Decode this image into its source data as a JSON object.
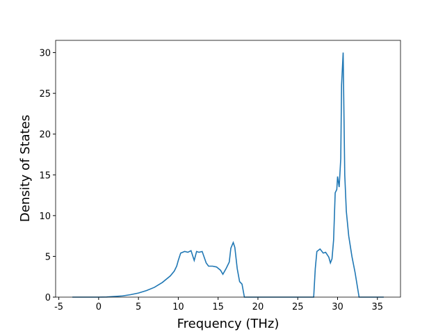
{
  "chart_data": {
    "type": "line",
    "x_label": "Frequency (THz)",
    "y_label": "Density of States",
    "x": [
      -3.3,
      0,
      1,
      2,
      3,
      4,
      5,
      6,
      7,
      8,
      9,
      9.5,
      9.8,
      10,
      10.3,
      10.8,
      11.2,
      11.6,
      12,
      12.3,
      12.6,
      13,
      13.5,
      13.8,
      14.3,
      14.8,
      15.3,
      15.6,
      16,
      16.4,
      16.6,
      16.9,
      17.1,
      17.4,
      17.7,
      18,
      18.3,
      27,
      27.2,
      27.4,
      27.8,
      28.2,
      28.5,
      28.9,
      29.1,
      29.3,
      29.5,
      29.7,
      29.9,
      30,
      30.2,
      30.4,
      30.5,
      30.7,
      30.9,
      31.1,
      31.4,
      31.8,
      32.2,
      32.7,
      35.8
    ],
    "series": [
      {
        "color": "#1f77b4",
        "values": [
          0,
          0,
          0.02,
          0.08,
          0.15,
          0.3,
          0.5,
          0.8,
          1.2,
          1.8,
          2.6,
          3.2,
          3.8,
          4.5,
          5.4,
          5.6,
          5.5,
          5.7,
          4.5,
          5.6,
          5.5,
          5.6,
          4.2,
          3.8,
          3.8,
          3.7,
          3.3,
          2.8,
          3.5,
          4.3,
          6.0,
          6.7,
          6.1,
          3.5,
          1.9,
          1.6,
          0,
          0,
          3.5,
          5.6,
          5.9,
          5.4,
          5.5,
          4.9,
          4.2,
          4.7,
          7,
          12.8,
          13.2,
          14.8,
          13.5,
          17,
          26,
          30,
          15,
          10.5,
          7.5,
          5,
          3,
          0,
          0
        ]
      }
    ],
    "xlim": [
      -5.4,
      37.9
    ],
    "xticks": [
      -5,
      0,
      5,
      10,
      15,
      20,
      25,
      30,
      35
    ],
    "ylim": [
      0,
      31.5
    ],
    "yticks": [
      0,
      5,
      10,
      15,
      20,
      25,
      30
    ]
  }
}
